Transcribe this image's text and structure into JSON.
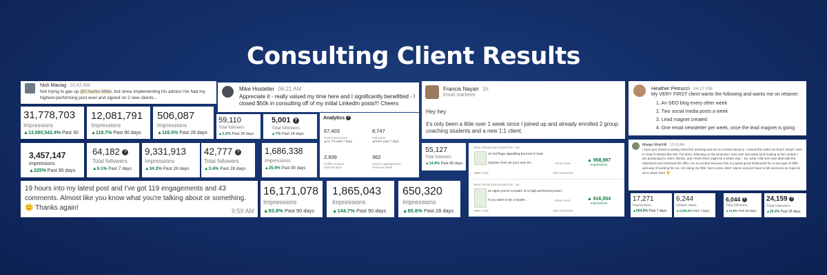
{
  "title": "Consulting Client Results",
  "posts": {
    "nick": {
      "name": "Nick Maciag",
      "time": "10:42 AM",
      "text_pre": "Not trying to gas up ",
      "mention": "@Charles Miller",
      "text_post": ", but since implementing his advice I've had my highest-performing post ever and signed on 2 new clients..."
    },
    "mike": {
      "name": "Mike Hostetler",
      "time": "06:21 AM",
      "text": "Appreciate it - really valued my time here and I significantly benefitted - I closed $50k in consulting off of my initial LinkedIn posts!!! Cheers"
    },
    "francis": {
      "name": "Francis Nayan",
      "time": "1h",
      "role": "Email marketer",
      "greeting": "Hey hey",
      "text": "it's only been a little over 1 week since I joined up and already enrolled 2 group coaching students and a new 1:1 client."
    },
    "heather": {
      "name": "Heather Petrucci",
      "time": "04:17 PM",
      "intro": "My VERY FIRST client wants the following and wants me on retainer:",
      "items": [
        "1. An SEO blog every other week",
        "2. Two social media posts a week",
        "3. Lead magnet created",
        "4. One email newsletter per week, once the lead magnet is going"
      ]
    },
    "margo": {
      "name": "Margo Mulchill",
      "time": "10:16 AM",
      "text": "I have just closed a writing client this morning and am so excited about it, I closed this within an hour!! Email I sent to close it started like this 'I've been reflecting on the proposal I sent over last week (and looking at the content I am producing for other clients), and I think there might be a better way '. So, what I did here was deal with the objections and reframed the offer. Am so excited because this is a great great testimonial for a new type of offer and way of working for me.  Am doing my little \"won a new client\" dance and just have to tell someone so hope its ok to share here 😁"
    },
    "engagement": {
      "text": "19 hours into my latest post and I've got 119 engagements and 43 comments. Almost like you know what you're talking about or something. 🙂 Thanks again!",
      "time": "9:59 AM"
    }
  },
  "stats": {
    "s1": {
      "value": "31,778,703",
      "label": "Impressions",
      "pct": "13,580,542.4%",
      "period": "Past 30"
    },
    "s2": {
      "value": "12,081,791",
      "label": "Impressions",
      "pct": "118.7%",
      "period": "Past 90 days"
    },
    "s3": {
      "value": "506,087",
      "label": "Impressions",
      "pct": "116.5%",
      "period": "Past 28 days"
    },
    "s4": {
      "value": "59,110",
      "label": "Total followers",
      "pct": "3.2%",
      "period": "Past 28 days"
    },
    "s5": {
      "value": "5,001",
      "label": "Total followers",
      "pct": "7%",
      "period": "Past 14 days"
    },
    "s6": {
      "value": "3,457,147",
      "label": "Impressions",
      "pct": "225%",
      "period": "Past 90 days"
    },
    "s7": {
      "value": "64,182",
      "label": "Total followers",
      "pct": "6.1%",
      "period": "Past 7 days"
    },
    "s8": {
      "value": "9,331,913",
      "label": "Impressions",
      "pct": "34.2%",
      "period": "Past 28 days"
    },
    "s9": {
      "value": "42,777",
      "label": "Total followers",
      "pct": "3.4%",
      "period": "Past 28 days"
    },
    "s10": {
      "value": "1,686,338",
      "label": "Impressions",
      "pct": "25.9%",
      "period": "Past 90 days"
    },
    "s11": {
      "value": "55,127",
      "label": "Total followers",
      "pct": "14.9%",
      "period": "Past 90 days"
    },
    "s12": {
      "value": "16,171,078",
      "label": "Impressions",
      "pct": "93.8%",
      "period": "Past 90 days"
    },
    "s13": {
      "value": "1,865,043",
      "label": "Impressions",
      "pct": "144.7%",
      "period": "Past 90 days"
    },
    "s14": {
      "value": "650,320",
      "label": "Impressions",
      "pct": "85.6%",
      "period": "Past 28 days"
    },
    "s15": {
      "value": "17,271",
      "label": "Impressions",
      "pct": "664.9%",
      "period": "Past 7 days"
    },
    "s16": {
      "value": "6,244",
      "label": "Unique views",
      "pct": "2,264.4%",
      "period": "Past 7 days"
    },
    "s17": {
      "value": "6,044",
      "label": "Total followers",
      "pct": "14.6%",
      "period": "Past 28 days"
    },
    "s18": {
      "value": "24,159",
      "label": "Total followers",
      "pct": "20.2%",
      "period": "Past 28 days"
    }
  },
  "analytics": {
    "title": "Analytics",
    "cells": [
      {
        "value": "67,403",
        "label": "Post impressions",
        "change": "11.7% past 7 days"
      },
      {
        "value": "8,747",
        "label": "Followers",
        "change": "9.6% past 7 days"
      },
      {
        "value": "2,939",
        "label": "Profile viewers",
        "change": "Past 90 days"
      },
      {
        "value": "362",
        "label": "Search appearances",
        "change": "Previous week"
      }
    ]
  },
  "feed": {
    "items": [
      {
        "header": "Bora Varhanovik posted this · 3w",
        "line1": "10 red flags signalling burnout is near:",
        "line2": "(spoken from an your own thi...",
        "more": "...show more",
        "meta_left": "1,849",
        "meta_right": "283 comments",
        "value": "958,987",
        "label": "Impressions"
      },
      {
        "header": "Bora Varhanovik posted this · 3w",
        "line1": "11 signs you're a leader of a high-performing team:",
        "line2": "If you want to be a leader...",
        "more": "...show more",
        "meta_left": "1,849",
        "meta_right": "289 comments",
        "value": "616,554",
        "label": "Impressions"
      }
    ]
  }
}
